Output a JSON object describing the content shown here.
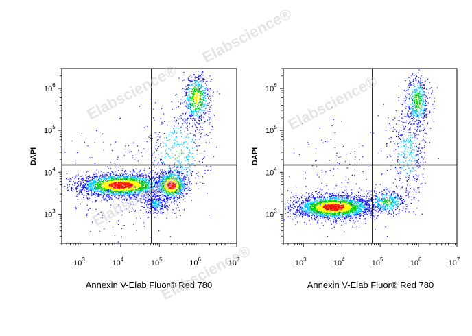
{
  "watermark": {
    "text": "Elabscience®"
  },
  "chart_data": [
    {
      "type": "scatter",
      "style": "density-dot-plot",
      "x_scale": "log",
      "y_scale": "log",
      "xlim": [
        300,
        10000000
      ],
      "ylim": [
        200,
        3000000
      ],
      "xlabel": "Annexin V-Elab Fluor® Red 780",
      "ylabel": "DAPI",
      "x_ticks": [
        {
          "base": "10",
          "exp": "3",
          "value": 1000
        },
        {
          "base": "10",
          "exp": "4",
          "value": 10000
        },
        {
          "base": "10",
          "exp": "5",
          "value": 100000
        },
        {
          "base": "10",
          "exp": "6",
          "value": 1000000
        },
        {
          "base": "10",
          "exp": "7",
          "value": 10000000
        }
      ],
      "y_ticks": [
        {
          "base": "10",
          "exp": "3",
          "value": 1000
        },
        {
          "base": "10",
          "exp": "4",
          "value": 10000
        },
        {
          "base": "10",
          "exp": "5",
          "value": 100000
        },
        {
          "base": "10",
          "exp": "6",
          "value": 1000000
        }
      ],
      "quadrant_gate": {
        "x": 63000,
        "y": 15000
      },
      "populations": [
        {
          "cx": 10000,
          "cy": 5000,
          "sx": 0.55,
          "sy": 0.14,
          "n": 2600
        },
        {
          "cx": 200000,
          "cy": 5000,
          "sx": 0.2,
          "sy": 0.17,
          "n": 900
        },
        {
          "cx": 80000,
          "cy": 1800,
          "sx": 0.15,
          "sy": 0.12,
          "n": 300
        },
        {
          "cx": 900000,
          "cy": 600000,
          "sx": 0.18,
          "sy": 0.3,
          "n": 650
        },
        {
          "cx": 300000,
          "cy": 30000,
          "sx": 0.4,
          "sy": 0.55,
          "n": 420
        },
        {
          "cx": 10000,
          "cy": 4000,
          "sx": 0.7,
          "sy": 0.75,
          "n": 220
        }
      ],
      "colors": {
        "sparse": "#1010ff",
        "low": "#00c8ff",
        "mid": "#00d000",
        "high": "#ffff00",
        "peak": "#ff1500",
        "gate": "#000000"
      }
    },
    {
      "type": "scatter",
      "style": "density-dot-plot",
      "x_scale": "log",
      "y_scale": "log",
      "xlim": [
        300,
        10000000
      ],
      "ylim": [
        200,
        3000000
      ],
      "xlabel": "Annexin V-Elab Fluor® Red 780",
      "ylabel": "DAPI",
      "x_ticks": [
        {
          "base": "10",
          "exp": "3",
          "value": 1000
        },
        {
          "base": "10",
          "exp": "4",
          "value": 10000
        },
        {
          "base": "10",
          "exp": "5",
          "value": 100000
        },
        {
          "base": "10",
          "exp": "6",
          "value": 1000000
        },
        {
          "base": "10",
          "exp": "7",
          "value": 10000000
        }
      ],
      "y_ticks": [
        {
          "base": "10",
          "exp": "3",
          "value": 1000
        },
        {
          "base": "10",
          "exp": "4",
          "value": 10000
        },
        {
          "base": "10",
          "exp": "5",
          "value": 100000
        },
        {
          "base": "10",
          "exp": "6",
          "value": 1000000
        }
      ],
      "quadrant_gate": {
        "x": 63000,
        "y": 15000
      },
      "populations": [
        {
          "cx": 6000,
          "cy": 1500,
          "sx": 0.5,
          "sy": 0.14,
          "n": 2600
        },
        {
          "cx": 150000,
          "cy": 2000,
          "sx": 0.3,
          "sy": 0.15,
          "n": 450
        },
        {
          "cx": 900000,
          "cy": 500000,
          "sx": 0.16,
          "sy": 0.32,
          "n": 520
        },
        {
          "cx": 500000,
          "cy": 30000,
          "sx": 0.25,
          "sy": 0.5,
          "n": 360
        },
        {
          "cx": 8000,
          "cy": 6000,
          "sx": 0.6,
          "sy": 0.7,
          "n": 150
        }
      ],
      "colors": {
        "sparse": "#1010ff",
        "low": "#00c8ff",
        "mid": "#00d000",
        "high": "#ffff00",
        "peak": "#ff1500",
        "gate": "#000000"
      }
    }
  ]
}
